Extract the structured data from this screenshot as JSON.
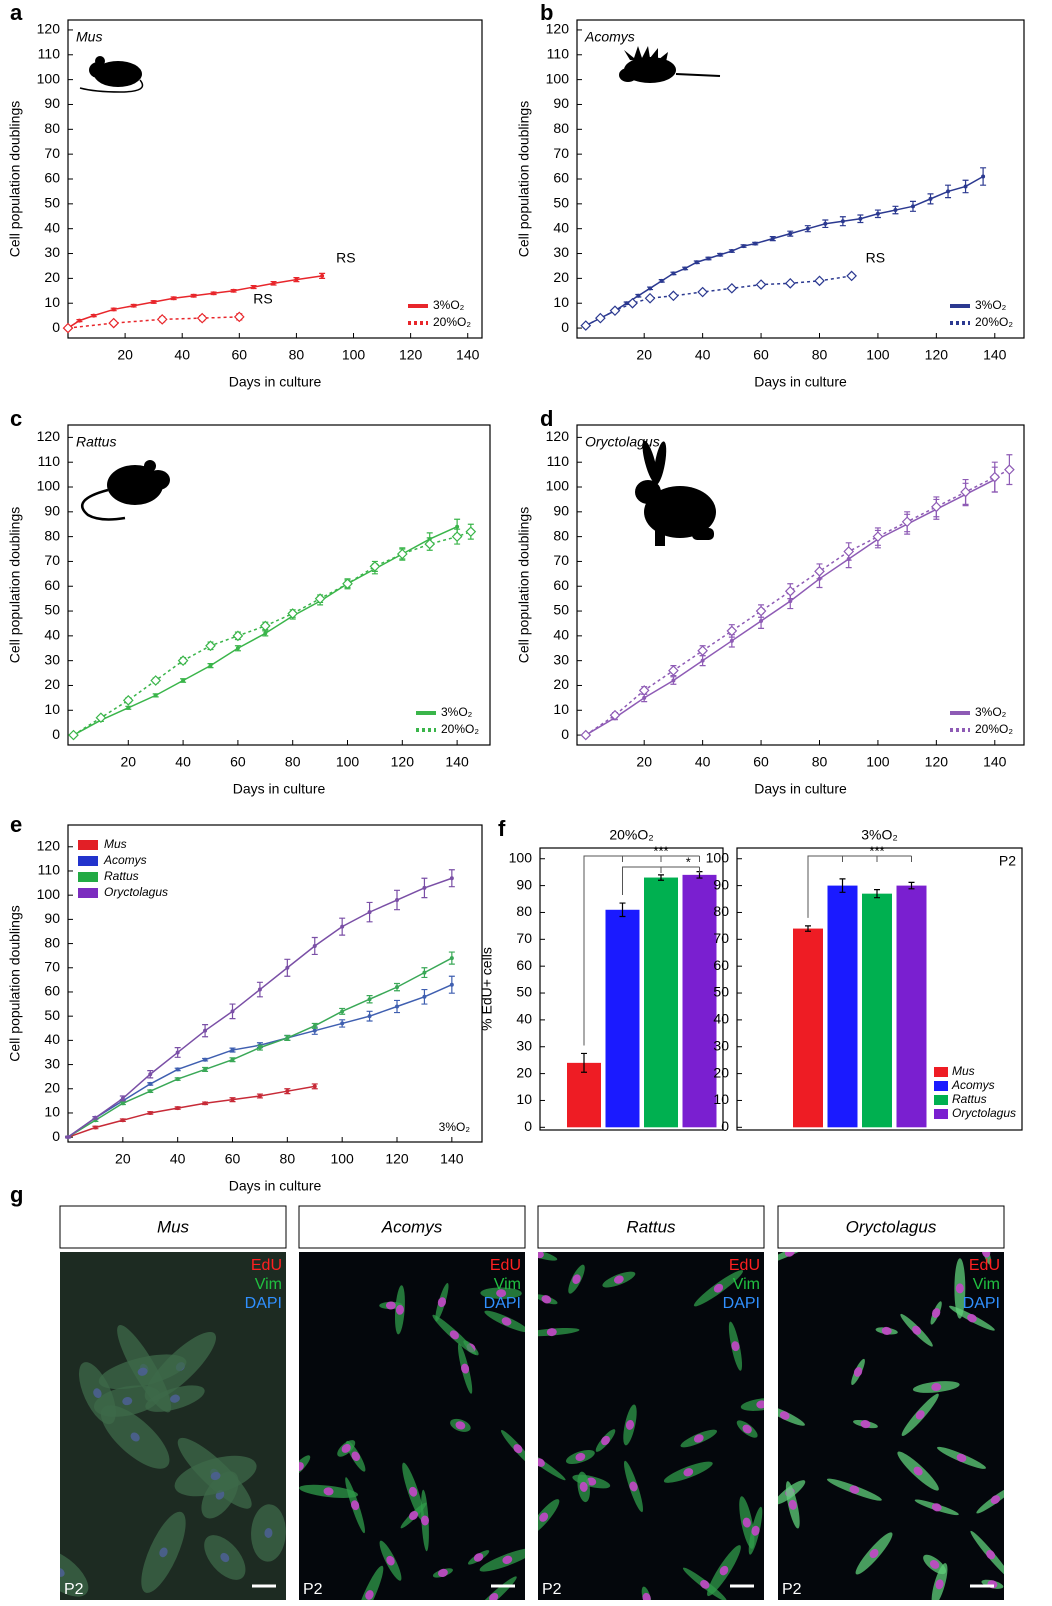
{
  "chart_data": [
    {
      "type": "line",
      "panel": "a",
      "species": "Mus",
      "xlabel": "Days in culture",
      "ylabel": "Cell population doublings",
      "xlim": [
        0,
        145
      ],
      "ylim": [
        -4,
        124
      ],
      "xticks": [
        20,
        40,
        60,
        80,
        100,
        120,
        140
      ],
      "yticks": [
        0,
        10,
        20,
        30,
        40,
        50,
        60,
        70,
        80,
        90,
        100,
        110,
        120
      ],
      "legend": "lower right",
      "series": [
        {
          "name": "3%O₂",
          "color": "#e8262b",
          "dashed": false,
          "marker": "dot",
          "end_label": "RS",
          "x": [
            0,
            4,
            9,
            16,
            23,
            30,
            37,
            44,
            51,
            58,
            65,
            72,
            80,
            89
          ],
          "values": [
            0,
            3,
            5,
            7.5,
            9,
            10.5,
            12,
            13,
            14,
            15,
            16.5,
            18,
            19.5,
            21
          ],
          "errors": [
            0.3,
            0.4,
            0.4,
            0.5,
            0.5,
            0.5,
            0.5,
            0.5,
            0.5,
            0.5,
            0.6,
            0.7,
            0.8,
            1
          ]
        },
        {
          "name": "20%O₂",
          "color": "#e8262b",
          "dashed": true,
          "marker": "diamond",
          "end_label": "RS",
          "x": [
            0,
            16,
            33,
            47,
            60
          ],
          "values": [
            0,
            2,
            3.5,
            4,
            4.5
          ],
          "errors": [
            0.5,
            0.8,
            1,
            1,
            1.2
          ]
        }
      ]
    },
    {
      "type": "line",
      "panel": "b",
      "species": "Acomys",
      "xlabel": "Days in culture",
      "ylabel": "Cell population doublings",
      "xlim": [
        -3,
        150
      ],
      "ylim": [
        -4,
        124
      ],
      "xticks": [
        20,
        40,
        60,
        80,
        100,
        120,
        140
      ],
      "yticks": [
        0,
        10,
        20,
        30,
        40,
        50,
        60,
        70,
        80,
        90,
        100,
        110,
        120
      ],
      "legend": "lower right",
      "series": [
        {
          "name": "3%O₂",
          "color": "#2b3990",
          "dashed": false,
          "marker": "dot",
          "x": [
            0,
            5,
            10,
            14,
            18,
            22,
            26,
            30,
            34,
            38,
            42,
            46,
            50,
            54,
            58,
            64,
            70,
            76,
            82,
            88,
            94,
            100,
            106,
            112,
            118,
            124,
            130,
            136
          ],
          "values": [
            1,
            4,
            7,
            10,
            13,
            16,
            19,
            22,
            24,
            26.5,
            28,
            29.5,
            31,
            33,
            34,
            36,
            38,
            40,
            42,
            43,
            44,
            46,
            47.5,
            49,
            52,
            55,
            57,
            61
          ],
          "errors": [
            0.5,
            0.5,
            0.5,
            0.5,
            0.5,
            0.5,
            0.5,
            0.5,
            0.5,
            0.5,
            0.5,
            0.5,
            0.5,
            0.5,
            0.5,
            0.8,
            1,
            1.2,
            1.5,
            1.8,
            1.5,
            1.5,
            1.5,
            2,
            2,
            2.5,
            2.5,
            3.5
          ]
        },
        {
          "name": "20%O₂",
          "color": "#2b3990",
          "dashed": true,
          "marker": "diamond",
          "end_label": "RS",
          "x": [
            0,
            5,
            10,
            16,
            22,
            30,
            40,
            50,
            60,
            70,
            80,
            91
          ],
          "values": [
            1,
            4,
            7,
            10,
            12,
            13,
            14.5,
            16,
            17.5,
            18,
            19,
            21
          ],
          "errors": [
            0.5,
            0.5,
            0.5,
            0.5,
            0.5,
            0.5,
            0.5,
            0.5,
            0.5,
            0.5,
            0.5,
            0.5
          ]
        }
      ]
    },
    {
      "type": "line",
      "panel": "c",
      "species": "Rattus",
      "xlabel": "Days in culture",
      "ylabel": "Cell population doublings",
      "xlim": [
        -2,
        152
      ],
      "ylim": [
        -4,
        125
      ],
      "xticks": [
        20,
        40,
        60,
        80,
        100,
        120,
        140
      ],
      "yticks": [
        0,
        10,
        20,
        30,
        40,
        50,
        60,
        70,
        80,
        90,
        100,
        110,
        120
      ],
      "legend": "lower right",
      "series": [
        {
          "name": "3%O₂",
          "color": "#3ab54a",
          "dashed": false,
          "marker": "dot",
          "x": [
            0,
            10,
            20,
            30,
            40,
            50,
            60,
            70,
            80,
            90,
            100,
            110,
            120,
            130,
            140
          ],
          "values": [
            0,
            6,
            11,
            16,
            22,
            28,
            35,
            41,
            48,
            54,
            61,
            67,
            73,
            79,
            84
          ],
          "errors": [
            0.5,
            0.5,
            0.6,
            0.6,
            0.7,
            0.8,
            1,
            1,
            1.2,
            1.5,
            1.5,
            2,
            2,
            2.5,
            3
          ]
        },
        {
          "name": "20%O₂",
          "color": "#3ab54a",
          "dashed": true,
          "marker": "diamond",
          "x": [
            0,
            10,
            20,
            30,
            40,
            50,
            60,
            70,
            80,
            90,
            100,
            110,
            120,
            130,
            140,
            145
          ],
          "values": [
            0,
            7,
            14,
            22,
            30,
            36,
            40,
            44,
            49,
            55,
            61,
            68,
            73,
            77,
            80,
            82
          ],
          "errors": [
            0.5,
            0.8,
            1,
            1,
            1.2,
            1.5,
            1.5,
            1.5,
            1.5,
            1.5,
            2,
            2,
            2.5,
            2.5,
            3,
            3
          ]
        }
      ]
    },
    {
      "type": "line",
      "panel": "d",
      "species": "Oryctolagus",
      "xlabel": "Days in culture",
      "ylabel": "Cell population doublings",
      "xlim": [
        -3,
        150
      ],
      "ylim": [
        -4,
        125
      ],
      "xticks": [
        20,
        40,
        60,
        80,
        100,
        120,
        140
      ],
      "yticks": [
        0,
        10,
        20,
        30,
        40,
        50,
        60,
        70,
        80,
        90,
        100,
        110,
        120
      ],
      "legend": "lower right",
      "series": [
        {
          "name": "3%O₂",
          "color": "#8e5bb5",
          "dashed": false,
          "marker": "dot",
          "x": [
            0,
            10,
            20,
            30,
            40,
            50,
            60,
            70,
            80,
            90,
            100,
            110,
            120,
            130,
            140
          ],
          "values": [
            0,
            7,
            15,
            22,
            30,
            38,
            46,
            54,
            63,
            71,
            79,
            85,
            91,
            97,
            103
          ],
          "errors": [
            0.5,
            0.8,
            1.5,
            1.5,
            2,
            2.5,
            3,
            3,
            3.5,
            3.5,
            3.5,
            4,
            4,
            4.5,
            5
          ]
        },
        {
          "name": "20%O₂",
          "color": "#8e5bb5",
          "dashed": true,
          "marker": "diamond",
          "x": [
            0,
            10,
            20,
            30,
            40,
            50,
            60,
            70,
            80,
            90,
            100,
            110,
            120,
            130,
            140,
            145
          ],
          "values": [
            0,
            8,
            18,
            26,
            34,
            42,
            50,
            58,
            66,
            74,
            80,
            86,
            92,
            98,
            104,
            107
          ],
          "errors": [
            0.5,
            1,
            1.5,
            2,
            2,
            2.5,
            2.5,
            3,
            3,
            3.5,
            3.5,
            4,
            4,
            5,
            6,
            6
          ]
        }
      ]
    },
    {
      "type": "line",
      "panel": "e",
      "xlabel": "Days in culture",
      "ylabel": "Cell population doublings",
      "note": "3%O₂",
      "xlim": [
        0,
        151
      ],
      "ylim": [
        -2,
        129
      ],
      "xticks": [
        20,
        40,
        60,
        80,
        100,
        120,
        140
      ],
      "yticks": [
        0,
        10,
        20,
        30,
        40,
        50,
        60,
        70,
        80,
        90,
        100,
        110,
        120
      ],
      "legend": "upper left",
      "series": [
        {
          "name": "Mus",
          "color": "#c72a37",
          "legend_color": "#e21f26",
          "dashed": false,
          "marker": "dot",
          "x": [
            0,
            10,
            20,
            30,
            40,
            50,
            60,
            70,
            80,
            90
          ],
          "values": [
            0,
            4,
            7,
            10,
            12,
            14,
            15.5,
            17,
            19,
            21
          ],
          "errors": [
            0.3,
            0.5,
            0.5,
            0.5,
            0.5,
            0.5,
            0.8,
            0.8,
            1,
            1
          ]
        },
        {
          "name": "Acomys",
          "color": "#3f5fb0",
          "legend_color": "#2233cc",
          "dashed": false,
          "marker": "dot",
          "x": [
            0,
            10,
            20,
            30,
            40,
            50,
            60,
            70,
            80,
            90,
            100,
            110,
            120,
            130,
            140
          ],
          "values": [
            0,
            8,
            15,
            22,
            28,
            32,
            36,
            38,
            41,
            44,
            47,
            50,
            54,
            58,
            63
          ],
          "errors": [
            0.3,
            0.5,
            0.5,
            0.5,
            0.5,
            0.5,
            0.8,
            1,
            1,
            1.5,
            1.5,
            2,
            2.5,
            3,
            3.5
          ]
        },
        {
          "name": "Rattus",
          "color": "#3aa857",
          "legend_color": "#22aa44",
          "dashed": false,
          "marker": "dot",
          "x": [
            0,
            10,
            20,
            30,
            40,
            50,
            60,
            70,
            80,
            90,
            100,
            110,
            120,
            130,
            140
          ],
          "values": [
            0,
            7,
            14,
            19,
            24,
            28,
            32,
            37,
            41,
            46,
            52,
            57,
            62,
            68,
            74
          ],
          "errors": [
            0.3,
            0.5,
            0.5,
            0.5,
            0.5,
            0.8,
            0.8,
            1,
            1,
            1,
            1.2,
            1.5,
            1.5,
            2,
            2.5
          ]
        },
        {
          "name": "Oryctolagus",
          "color": "#7a4fa6",
          "legend_color": "#7b2cbf",
          "dashed": false,
          "marker": "dot",
          "x": [
            0,
            10,
            20,
            30,
            40,
            50,
            60,
            70,
            80,
            90,
            100,
            110,
            120,
            130,
            140
          ],
          "values": [
            0,
            8,
            16,
            26,
            35,
            44,
            52,
            61,
            70,
            79,
            87,
            93,
            98,
            103,
            107
          ],
          "errors": [
            0.3,
            0.5,
            1,
            1.5,
            2,
            2.5,
            3,
            3,
            3.5,
            3.5,
            3.5,
            4,
            4,
            4,
            3.5
          ]
        }
      ]
    },
    {
      "type": "bar",
      "panel": "f",
      "title": "20%O₂",
      "ylabel": "% EdU+ cells",
      "ylim": [
        -1,
        104
      ],
      "yticks": [
        0,
        10,
        20,
        30,
        40,
        50,
        60,
        70,
        80,
        90,
        100
      ],
      "values": [
        24,
        81,
        93,
        94
      ],
      "errors": [
        3.5,
        2.5,
        1,
        1.2
      ],
      "colors": [
        "#ee1c24",
        "#1a1aff",
        "#00b050",
        "#7a1fd0"
      ],
      "significance": [
        "***",
        "*"
      ]
    },
    {
      "type": "bar",
      "title": "3%O₂",
      "note": "P2",
      "ylim": [
        -1,
        104
      ],
      "yticks": [
        0,
        10,
        20,
        30,
        40,
        50,
        60,
        70,
        80,
        90,
        100
      ],
      "categories": [
        "Mus",
        "Acomys",
        "Rattus",
        "Oryctolagus"
      ],
      "values": [
        74,
        90,
        87,
        90
      ],
      "errors": [
        1,
        2.5,
        1.5,
        1.2
      ],
      "colors": [
        "#ee1c24",
        "#1a1aff",
        "#00b050",
        "#7a1fd0"
      ],
      "significance": [
        "***"
      ],
      "legend": "lower right"
    }
  ],
  "figure_g": {
    "panel": "g",
    "images": [
      {
        "title": "Mus",
        "stains": [
          "EdU",
          "Vim",
          "DAPI"
        ],
        "passage": "P2"
      },
      {
        "title": "Acomys",
        "stains": [
          "EdU",
          "Vim",
          "DAPI"
        ],
        "passage": "P2"
      },
      {
        "title": "Rattus",
        "stains": [
          "EdU",
          "Vim",
          "DAPI"
        ],
        "passage": "P2"
      },
      {
        "title": "Oryctolagus",
        "stains": [
          "EdU",
          "Vim",
          "DAPI"
        ],
        "passage": "P2"
      }
    ]
  }
}
